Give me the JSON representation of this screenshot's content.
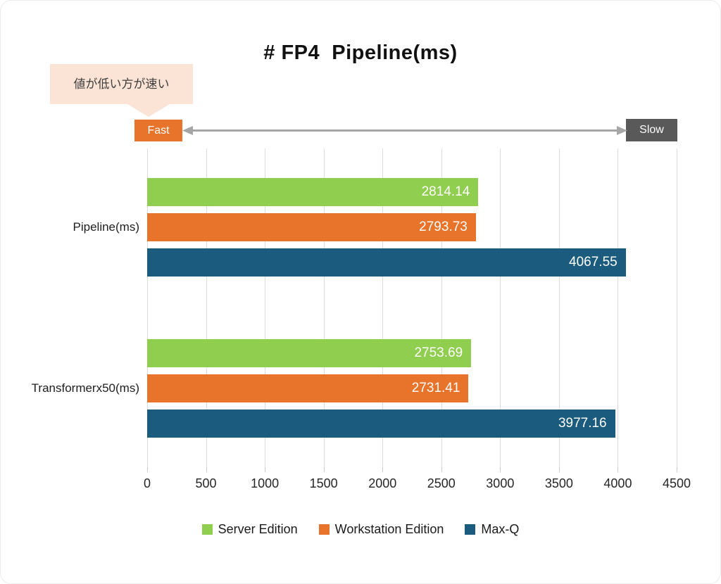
{
  "title": "# FP4  Pipeline(ms)",
  "annotation": {
    "note": "値が低い方が速い",
    "fast_label": "Fast",
    "slow_label": "Slow"
  },
  "colors": {
    "fast_bg": "#E8732A",
    "slow_bg": "#595959",
    "arrow": "#A6A6A6",
    "bubble_bg": "#FBE3D5",
    "grid": "#DCDCDC"
  },
  "chart_data": {
    "type": "bar",
    "orientation": "horizontal",
    "title": "# FP4  Pipeline(ms)",
    "categories": [
      "Pipeline(ms)",
      "Transformerx50(ms)"
    ],
    "series": [
      {
        "name": "Server Edition",
        "color": "#8FCE4E",
        "values": [
          2814.14,
          2753.69
        ]
      },
      {
        "name": "Workstation Edition",
        "color": "#E8732A",
        "values": [
          2793.73,
          2731.41
        ]
      },
      {
        "name": "Max-Q",
        "color": "#1A5B7E",
        "values": [
          4067.55,
          3977.16
        ]
      }
    ],
    "xlim": [
      0,
      4500
    ],
    "xticks": [
      0,
      500,
      1000,
      1500,
      2000,
      2500,
      3000,
      3500,
      4000,
      4500
    ],
    "grid": "vertical",
    "legend_position": "bottom",
    "value_labels": "inside-end"
  }
}
